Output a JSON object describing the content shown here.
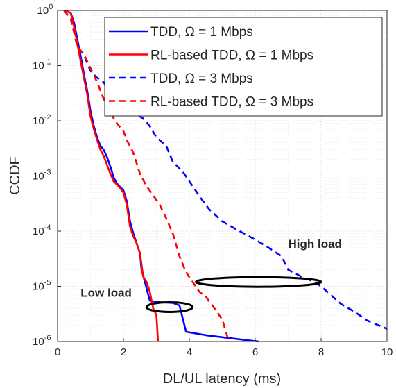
{
  "chart_data": {
    "type": "line",
    "xlabel": "DL/UL latency (ms)",
    "ylabel": "CCDF",
    "xlim": [
      0,
      10
    ],
    "ylim": [
      1e-06,
      1
    ],
    "yscale": "log",
    "grid": true,
    "minor_grid": true,
    "legend_position": "top-right",
    "x_ticks": [
      0,
      2,
      4,
      6,
      8,
      10
    ],
    "x_tick_labels": [
      "0",
      "2",
      "4",
      "6",
      "8",
      "10"
    ],
    "y_ticks": [
      {
        "value": 1,
        "mantissa": "10",
        "exp": "0"
      },
      {
        "value": 0.1,
        "mantissa": "10",
        "exp": "-1"
      },
      {
        "value": 0.01,
        "mantissa": "10",
        "exp": "-2"
      },
      {
        "value": 0.001,
        "mantissa": "10",
        "exp": "-3"
      },
      {
        "value": 0.0001,
        "mantissa": "10",
        "exp": "-4"
      },
      {
        "value": 1e-05,
        "mantissa": "10",
        "exp": "-5"
      },
      {
        "value": 1e-06,
        "mantissa": "10",
        "exp": "-6"
      }
    ],
    "series": [
      {
        "name": "TDD, Ω = 1 Mbps",
        "color": "#0000ff",
        "dash": "solid",
        "points": [
          [
            0.2,
            1
          ],
          [
            0.4,
            0.9
          ],
          [
            0.5,
            0.6
          ],
          [
            0.6,
            0.3
          ],
          [
            0.7,
            0.15
          ],
          [
            0.8,
            0.07
          ],
          [
            0.9,
            0.035
          ],
          [
            1.0,
            0.015
          ],
          [
            1.1,
            0.008
          ],
          [
            1.2,
            0.005
          ],
          [
            1.3,
            0.0035
          ],
          [
            1.4,
            0.003
          ],
          [
            1.5,
            0.0022
          ],
          [
            1.6,
            0.0015
          ],
          [
            1.7,
            0.00095
          ],
          [
            1.8,
            0.00073
          ],
          [
            2.0,
            0.00055
          ],
          [
            2.1,
            0.00035
          ],
          [
            2.2,
            0.00015
          ],
          [
            2.3,
            9e-05
          ],
          [
            2.4,
            6e-05
          ],
          [
            2.5,
            4e-05
          ],
          [
            2.55,
            2e-05
          ],
          [
            2.65,
            1.2e-05
          ],
          [
            2.8,
            5.5e-06
          ],
          [
            3.0,
            5.2e-06
          ],
          [
            3.5,
            5e-06
          ],
          [
            3.7,
            4.5e-06
          ],
          [
            3.9,
            1.5e-06
          ],
          [
            4.5,
            1.3e-06
          ],
          [
            5.5,
            1.1e-06
          ],
          [
            6.1,
            1e-06
          ]
        ]
      },
      {
        "name": "RL-based TDD, Ω = 1 Mbps",
        "color": "#ff0000",
        "dash": "solid",
        "points": [
          [
            0.2,
            1
          ],
          [
            0.4,
            0.9
          ],
          [
            0.5,
            0.5
          ],
          [
            0.6,
            0.25
          ],
          [
            0.7,
            0.12
          ],
          [
            0.8,
            0.06
          ],
          [
            0.9,
            0.03
          ],
          [
            1.0,
            0.012
          ],
          [
            1.1,
            0.007
          ],
          [
            1.2,
            0.0045
          ],
          [
            1.3,
            0.003
          ],
          [
            1.4,
            0.0023
          ],
          [
            1.5,
            0.0016
          ],
          [
            1.6,
            0.0011
          ],
          [
            1.7,
            0.0008
          ],
          [
            1.8,
            0.0007
          ],
          [
            1.9,
            0.0006
          ],
          [
            2.0,
            0.0005
          ],
          [
            2.1,
            0.0003
          ],
          [
            2.2,
            0.00012
          ],
          [
            2.3,
            8e-05
          ],
          [
            2.4,
            6e-05
          ],
          [
            2.5,
            4e-05
          ],
          [
            2.6,
            1.5e-05
          ],
          [
            2.7,
            1.2e-05
          ],
          [
            2.8,
            8e-06
          ],
          [
            2.9,
            4e-06
          ],
          [
            3.0,
            3e-06
          ],
          [
            3.05,
            1e-06
          ]
        ]
      },
      {
        "name": "TDD, Ω = 3 Mbps",
        "color": "#0000ff",
        "dash": "dashed",
        "points": [
          [
            0.2,
            1
          ],
          [
            0.4,
            0.7
          ],
          [
            0.5,
            0.4
          ],
          [
            0.6,
            0.22
          ],
          [
            0.8,
            0.16
          ],
          [
            0.9,
            0.11
          ],
          [
            1.0,
            0.08
          ],
          [
            1.2,
            0.06
          ],
          [
            1.4,
            0.05
          ],
          [
            1.6,
            0.03
          ],
          [
            1.8,
            0.02
          ],
          [
            2.0,
            0.017
          ],
          [
            2.2,
            0.015
          ],
          [
            2.4,
            0.013
          ],
          [
            2.6,
            0.011
          ],
          [
            2.8,
            0.008
          ],
          [
            3.0,
            0.005
          ],
          [
            3.3,
            0.0035
          ],
          [
            3.5,
            0.0018
          ],
          [
            3.8,
            0.0012
          ],
          [
            4.0,
            0.0008
          ],
          [
            4.4,
            0.00036
          ],
          [
            4.6,
            0.00025
          ],
          [
            5.0,
            0.00015
          ],
          [
            5.4,
            0.00011
          ],
          [
            6.0,
            7e-05
          ],
          [
            6.3,
            5.5e-05
          ],
          [
            6.8,
            3.5e-05
          ],
          [
            7.0,
            2e-05
          ],
          [
            7.4,
            1.5e-05
          ],
          [
            7.8,
            1.2e-05
          ],
          [
            8.0,
            1e-05
          ],
          [
            8.6,
            4.8e-06
          ],
          [
            9.0,
            3.5e-06
          ],
          [
            9.4,
            2.4e-06
          ],
          [
            10,
            1.7e-06
          ]
        ]
      },
      {
        "name": "RL-based  TDD, Ω = 3 Mbps",
        "color": "#ff0000",
        "dash": "dashed",
        "points": [
          [
            0.2,
            1
          ],
          [
            0.4,
            0.7
          ],
          [
            0.5,
            0.4
          ],
          [
            0.6,
            0.22
          ],
          [
            0.8,
            0.16
          ],
          [
            1.0,
            0.09
          ],
          [
            1.2,
            0.05
          ],
          [
            1.4,
            0.025
          ],
          [
            1.6,
            0.014
          ],
          [
            1.8,
            0.009
          ],
          [
            2.0,
            0.0065
          ],
          [
            2.1,
            0.0045
          ],
          [
            2.3,
            0.0026
          ],
          [
            2.5,
            0.0011
          ],
          [
            2.7,
            0.00065
          ],
          [
            2.9,
            0.00045
          ],
          [
            3.1,
            0.0003
          ],
          [
            3.3,
            0.00017
          ],
          [
            3.5,
            9e-05
          ],
          [
            3.7,
            3.5e-05
          ],
          [
            3.9,
            1.8e-05
          ],
          [
            4.1,
            1.2e-05
          ],
          [
            4.3,
            8e-06
          ],
          [
            4.5,
            6.5e-06
          ],
          [
            4.7,
            4.5e-06
          ],
          [
            5.0,
            2.5e-06
          ],
          [
            5.2,
            1e-06
          ]
        ]
      }
    ],
    "annotations": [
      {
        "text": "High load",
        "x": 7.0,
        "y": 5e-05,
        "ellipse": {
          "cx": 6.1,
          "cy": 1.2e-05,
          "rx": 1.9
        }
      },
      {
        "text": "Low load",
        "x": 0.7,
        "y": 6.5e-06,
        "ellipse": {
          "cx": 3.4,
          "cy": 4.2e-06,
          "rx": 0.7
        }
      }
    ]
  }
}
